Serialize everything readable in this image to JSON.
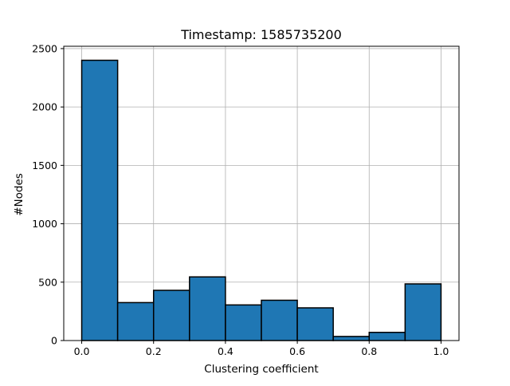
{
  "chart_data": {
    "type": "bar",
    "title": "Timestamp: 1585735200",
    "xlabel": "Clustering coefficient",
    "ylabel": "#Nodes",
    "bins": [
      {
        "start": 0.0,
        "end": 0.1,
        "value": 2400
      },
      {
        "start": 0.1,
        "end": 0.2,
        "value": 325
      },
      {
        "start": 0.2,
        "end": 0.3,
        "value": 430
      },
      {
        "start": 0.3,
        "end": 0.4,
        "value": 545
      },
      {
        "start": 0.4,
        "end": 0.5,
        "value": 305
      },
      {
        "start": 0.5,
        "end": 0.6,
        "value": 345
      },
      {
        "start": 0.6,
        "end": 0.7,
        "value": 280
      },
      {
        "start": 0.7,
        "end": 0.8,
        "value": 35
      },
      {
        "start": 0.8,
        "end": 0.9,
        "value": 70
      },
      {
        "start": 0.9,
        "end": 1.0,
        "value": 485
      }
    ],
    "xlim": [
      -0.05,
      1.05
    ],
    "ylim": [
      0,
      2520
    ],
    "xticks": [
      0.0,
      0.2,
      0.4,
      0.6,
      0.8,
      1.0
    ],
    "xtick_labels": [
      "0.0",
      "0.2",
      "0.4",
      "0.6",
      "0.8",
      "1.0"
    ],
    "yticks": [
      0,
      500,
      1000,
      1500,
      2000,
      2500
    ],
    "ytick_labels": [
      "0",
      "500",
      "1000",
      "1500",
      "2000",
      "2500"
    ],
    "grid": true,
    "bar_color": "#1f77b4",
    "edge_color": "#000000"
  }
}
